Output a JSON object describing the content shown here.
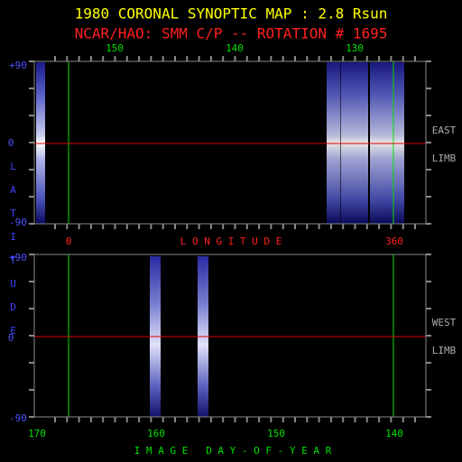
{
  "header": {
    "title": "1980 CORONAL SYNOPTIC MAP : 2.8 Rsun",
    "subtitle": "NCAR/HAO: SMM C/P -- ROTATION # 1695"
  },
  "y_axis_title": "LATITUDE",
  "top_panel": {
    "top_axis_labels": [
      "150",
      "140",
      "130"
    ],
    "latitude_labels": [
      "+90",
      "0",
      "-90"
    ],
    "side_labels": [
      "EAST",
      "LIMB"
    ],
    "bottom_axis_labels": [
      "0",
      "360"
    ],
    "bottom_axis_title": "L O N G I T U D E"
  },
  "bottom_panel": {
    "latitude_labels": [
      "+90",
      "0",
      "-90"
    ],
    "side_labels": [
      "WEST",
      "LIMB"
    ],
    "bottom_axis_labels": [
      "170",
      "160",
      "150",
      "140"
    ],
    "bottom_axis_title": "I M A G E   D A Y - O F - Y E A R"
  }
}
